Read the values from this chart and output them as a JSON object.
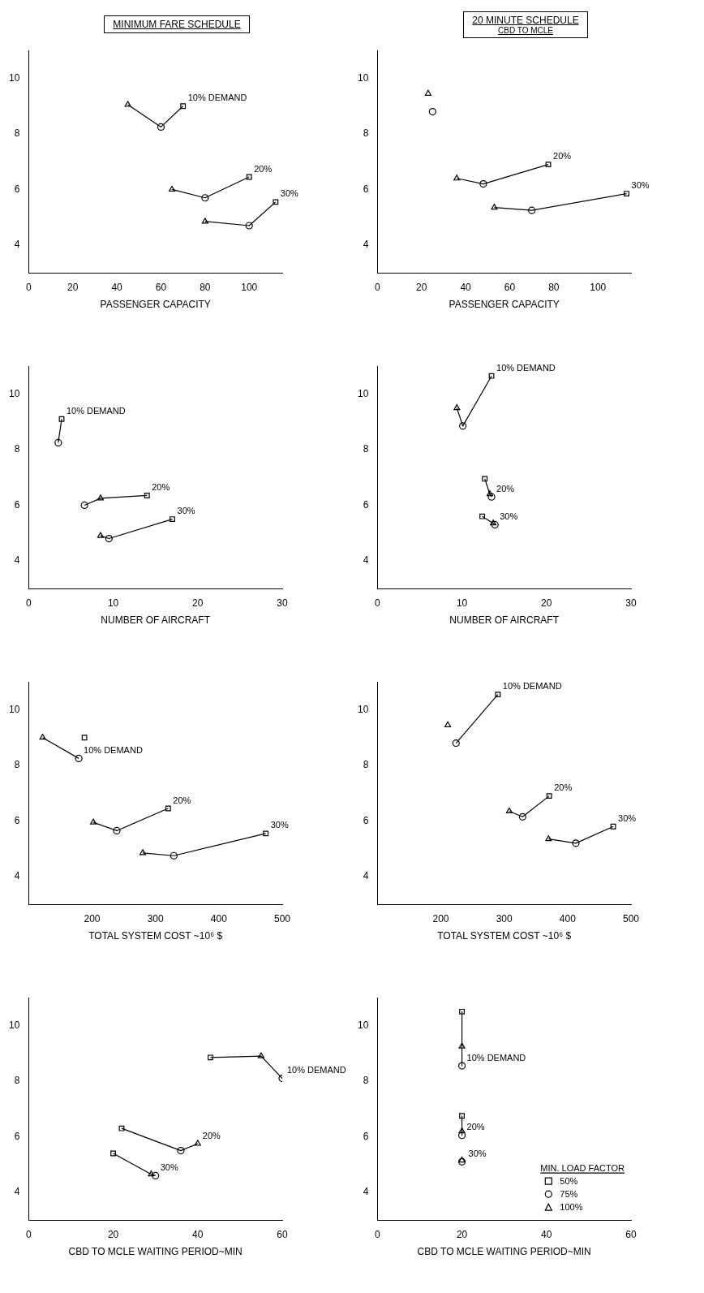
{
  "chart_data": [
    {
      "type": "line",
      "title": "MINIMUM FARE SCHEDULE",
      "xlabel": "PASSENGER CAPACITY",
      "xlim": [
        0,
        115
      ],
      "xticks": [
        0,
        20,
        40,
        60,
        80,
        100
      ],
      "ylim": [
        3,
        11
      ],
      "yticks": [
        4,
        6,
        8,
        10
      ],
      "marker": "none",
      "grid": false,
      "legend": false,
      "series": [
        {
          "name": "10% DEMAND",
          "color": "#000000",
          "x": [
            45,
            60,
            70
          ],
          "values": [
            9.05,
            8.25,
            9.0
          ]
        },
        {
          "name": "20%",
          "color": "#000000",
          "x": [
            65,
            80,
            100
          ],
          "values": [
            6.0,
            5.7,
            6.45
          ]
        },
        {
          "name": "30%",
          "color": "#000000",
          "x": [
            80,
            100,
            112
          ],
          "values": [
            4.85,
            4.7,
            5.55
          ]
        },
        {
          "type": "scatter",
          "marker": "square",
          "color": "#000000",
          "x": [
            70,
            100,
            112
          ],
          "values": [
            9.0,
            6.45,
            5.55
          ]
        },
        {
          "type": "scatter",
          "marker": "circle",
          "color": "#000000",
          "x": [
            60,
            80,
            100
          ],
          "values": [
            8.25,
            5.7,
            4.7
          ]
        },
        {
          "type": "scatter",
          "marker": "triangle",
          "color": "#000000",
          "x": [
            45,
            65,
            80
          ],
          "values": [
            9.05,
            6.0,
            4.85
          ]
        }
      ]
    },
    {
      "type": "line",
      "title": "20 MINUTE SCHEDULE",
      "subtitle": "CBD TO MCLE",
      "xlabel": "PASSENGER CAPACITY",
      "xlim": [
        0,
        115
      ],
      "xticks": [
        0,
        20,
        40,
        60,
        80,
        100
      ],
      "ylim": [
        3,
        11
      ],
      "yticks": [
        4,
        6,
        8,
        10
      ],
      "marker": "none",
      "grid": false,
      "legend": false,
      "series": [
        {
          "name": "20%",
          "color": "#000000",
          "x": [
            36,
            48,
            77.5
          ],
          "values": [
            6.4,
            6.2,
            6.9
          ]
        },
        {
          "name": "30%",
          "color": "#000000",
          "x": [
            53,
            70,
            113
          ],
          "values": [
            5.35,
            5.25,
            5.85
          ]
        },
        {
          "type": "scatter",
          "marker": "square",
          "color": "#000000",
          "x": [
            77.5,
            113
          ],
          "values": [
            6.9,
            5.85
          ]
        },
        {
          "type": "scatter",
          "marker": "circle",
          "color": "#000000",
          "x": [
            25,
            48,
            70
          ],
          "values": [
            8.8,
            6.2,
            5.25
          ]
        },
        {
          "type": "scatter",
          "marker": "triangle",
          "color": "#000000",
          "x": [
            23,
            36,
            53
          ],
          "values": [
            9.45,
            6.4,
            5.35
          ]
        }
      ]
    },
    {
      "type": "line",
      "xlabel": "NUMBER OF AIRCRAFT",
      "xlim": [
        0,
        30
      ],
      "xticks": [
        0,
        10,
        20,
        30
      ],
      "ylim": [
        3,
        11
      ],
      "yticks": [
        4,
        6,
        8,
        10
      ],
      "marker": "none",
      "grid": false,
      "legend": false,
      "series": [
        {
          "name": "10% DEMAND",
          "color": "#000000",
          "x": [
            3.5,
            3.9
          ],
          "values": [
            8.25,
            9.1
          ]
        },
        {
          "name": "20%",
          "color": "#000000",
          "x": [
            6.6,
            8.5,
            14
          ],
          "values": [
            6.0,
            6.25,
            6.35
          ]
        },
        {
          "name": "30%",
          "color": "#000000",
          "x": [
            8.5,
            9.5,
            17
          ],
          "values": [
            4.9,
            4.8,
            5.5
          ]
        },
        {
          "type": "scatter",
          "marker": "square",
          "color": "#000000",
          "x": [
            3.9,
            14,
            17
          ],
          "values": [
            9.1,
            6.35,
            5.5
          ]
        },
        {
          "type": "scatter",
          "marker": "circle",
          "color": "#000000",
          "x": [
            3.5,
            6.6,
            9.5
          ],
          "values": [
            8.25,
            6.0,
            4.8
          ]
        },
        {
          "type": "scatter",
          "marker": "triangle",
          "color": "#000000",
          "x": [
            8.5,
            8.5
          ],
          "values": [
            6.25,
            4.9
          ]
        }
      ]
    },
    {
      "type": "line",
      "xlabel": "NUMBER OF AIRCRAFT",
      "xlim": [
        0,
        30
      ],
      "xticks": [
        0,
        10,
        20,
        30
      ],
      "ylim": [
        3,
        11
      ],
      "yticks": [
        4,
        6,
        8,
        10
      ],
      "marker": "none",
      "grid": false,
      "legend": false,
      "series": [
        {
          "name": "10% DEMAND",
          "color": "#000000",
          "x": [
            9.4,
            10.1,
            13.5
          ],
          "values": [
            9.5,
            8.85,
            10.65
          ]
        },
        {
          "name": "20%",
          "color": "#000000",
          "x": [
            12.7,
            13.3,
            13.5
          ],
          "values": [
            6.95,
            6.4,
            6.3
          ]
        },
        {
          "name": "30%",
          "color": "#000000",
          "x": [
            12.4,
            13.7,
            13.9
          ],
          "values": [
            5.6,
            5.35,
            5.3
          ]
        },
        {
          "type": "scatter",
          "marker": "square",
          "color": "#000000",
          "x": [
            13.5,
            12.7,
            12.4
          ],
          "values": [
            10.65,
            6.95,
            5.6
          ]
        },
        {
          "type": "scatter",
          "marker": "circle",
          "color": "#000000",
          "x": [
            10.1,
            13.5,
            13.9
          ],
          "values": [
            8.85,
            6.3,
            5.3
          ]
        },
        {
          "type": "scatter",
          "marker": "triangle",
          "color": "#000000",
          "x": [
            9.4,
            13.3,
            13.7
          ],
          "values": [
            9.5,
            6.4,
            5.35
          ]
        }
      ]
    },
    {
      "type": "line",
      "xlabel": "TOTAL SYSTEM COST ~10⁶ $",
      "xlim": [
        100,
        500
      ],
      "xticks": [
        200,
        300,
        400,
        500
      ],
      "ylim": [
        3,
        11
      ],
      "yticks": [
        4,
        6,
        8,
        10
      ],
      "marker": "none",
      "grid": false,
      "legend": false,
      "series": [
        {
          "name": "10% DEMAND",
          "color": "#000000",
          "x": [
            122,
            179
          ],
          "values": [
            9.0,
            8.25
          ]
        },
        {
          "name": "20%",
          "color": "#000000",
          "x": [
            202,
            239,
            320
          ],
          "values": [
            5.95,
            5.65,
            6.45
          ]
        },
        {
          "name": "30%",
          "color": "#000000",
          "x": [
            280,
            329,
            474
          ],
          "values": [
            4.85,
            4.75,
            5.55
          ]
        },
        {
          "type": "scatter",
          "marker": "square",
          "color": "#000000",
          "x": [
            188,
            320,
            474
          ],
          "values": [
            9.0,
            6.45,
            5.55
          ]
        },
        {
          "type": "scatter",
          "marker": "circle",
          "color": "#000000",
          "x": [
            179,
            239,
            329
          ],
          "values": [
            8.25,
            5.65,
            4.75
          ]
        },
        {
          "type": "scatter",
          "marker": "triangle",
          "color": "#000000",
          "x": [
            122,
            202,
            280
          ],
          "values": [
            9.0,
            5.95,
            4.85
          ]
        }
      ]
    },
    {
      "type": "line",
      "xlabel": "TOTAL SYSTEM COST ~10⁶ $",
      "xlim": [
        100,
        500
      ],
      "xticks": [
        200,
        300,
        400,
        500
      ],
      "ylim": [
        3,
        11
      ],
      "yticks": [
        4,
        6,
        8,
        10
      ],
      "marker": "none",
      "grid": false,
      "legend": false,
      "series": [
        {
          "name": "10% DEMAND",
          "color": "#000000",
          "x": [
            224,
            290
          ],
          "values": [
            8.8,
            10.55
          ]
        },
        {
          "name": "20%",
          "color": "#000000",
          "x": [
            308,
            329,
            371
          ],
          "values": [
            6.35,
            6.15,
            6.9
          ]
        },
        {
          "name": "30%",
          "color": "#000000",
          "x": [
            370,
            413,
            472
          ],
          "values": [
            5.35,
            5.2,
            5.8
          ]
        },
        {
          "type": "scatter",
          "marker": "square",
          "color": "#000000",
          "x": [
            290,
            371,
            472
          ],
          "values": [
            10.55,
            6.9,
            5.8
          ]
        },
        {
          "type": "scatter",
          "marker": "circle",
          "color": "#000000",
          "x": [
            224,
            329,
            413
          ],
          "values": [
            8.8,
            6.15,
            5.2
          ]
        },
        {
          "type": "scatter",
          "marker": "triangle",
          "color": "#000000",
          "x": [
            211,
            308,
            370
          ],
          "values": [
            9.45,
            6.35,
            5.35
          ]
        }
      ]
    },
    {
      "type": "line",
      "xlabel": "CBD TO MCLE WAITING PERIOD~MIN",
      "xlim": [
        0,
        60
      ],
      "xticks": [
        0,
        20,
        40,
        60
      ],
      "ylim": [
        3,
        11
      ],
      "yticks": [
        4,
        6,
        8,
        10
      ],
      "marker": "none",
      "grid": false,
      "legend": false,
      "series": [
        {
          "name": "10% DEMAND",
          "color": "#000000",
          "x": [
            43,
            55,
            60
          ],
          "values": [
            8.85,
            8.9,
            8.1
          ]
        },
        {
          "name": "20%",
          "color": "#000000",
          "x": [
            22,
            36,
            40
          ],
          "values": [
            6.3,
            5.5,
            5.75
          ]
        },
        {
          "name": "30%",
          "color": "#000000",
          "x": [
            20,
            29,
            30
          ],
          "values": [
            5.4,
            4.65,
            4.6
          ]
        },
        {
          "type": "scatter",
          "marker": "square",
          "color": "#000000",
          "x": [
            43,
            22,
            20
          ],
          "values": [
            8.85,
            6.3,
            5.4
          ]
        },
        {
          "type": "scatter",
          "marker": "circle",
          "color": "#000000",
          "x": [
            60,
            36,
            30
          ],
          "values": [
            8.1,
            5.5,
            4.6
          ]
        },
        {
          "type": "scatter",
          "marker": "triangle",
          "color": "#000000",
          "x": [
            55,
            40,
            29
          ],
          "values": [
            8.9,
            5.75,
            4.65
          ]
        }
      ]
    },
    {
      "type": "line",
      "xlabel": "CBD TO MCLE WAITING PERIOD~MIN",
      "xlim": [
        0,
        60
      ],
      "xticks": [
        0,
        20,
        40,
        60
      ],
      "ylim": [
        3,
        11
      ],
      "yticks": [
        4,
        6,
        8,
        10
      ],
      "marker": "none",
      "grid": false,
      "legend": "bottom right",
      "legend_title": "MIN. LOAD FACTOR",
      "annotations": [
        {
          "text": "30%",
          "x": 20,
          "y": 5.1
        }
      ],
      "series": [
        {
          "name": "10% DEMAND",
          "color": "#000000",
          "x": [
            20,
            20,
            20
          ],
          "values": [
            10.5,
            9.25,
            8.55
          ]
        },
        {
          "name": "20%",
          "color": "#000000",
          "x": [
            20,
            20,
            20
          ],
          "values": [
            6.75,
            6.2,
            6.05
          ]
        },
        {
          "type": "scatter",
          "name": "50%",
          "marker": "square",
          "color": "#000000",
          "x": [
            20,
            20
          ],
          "values": [
            10.5,
            6.75
          ]
        },
        {
          "type": "scatter",
          "name": "75%",
          "marker": "circle",
          "color": "#000000",
          "x": [
            20,
            20,
            20
          ],
          "values": [
            8.55,
            6.05,
            5.1
          ]
        },
        {
          "type": "scatter",
          "name": "100%",
          "marker": "triangle",
          "color": "#000000",
          "x": [
            20,
            20,
            20
          ],
          "values": [
            9.25,
            6.2,
            5.15
          ]
        }
      ]
    }
  ]
}
